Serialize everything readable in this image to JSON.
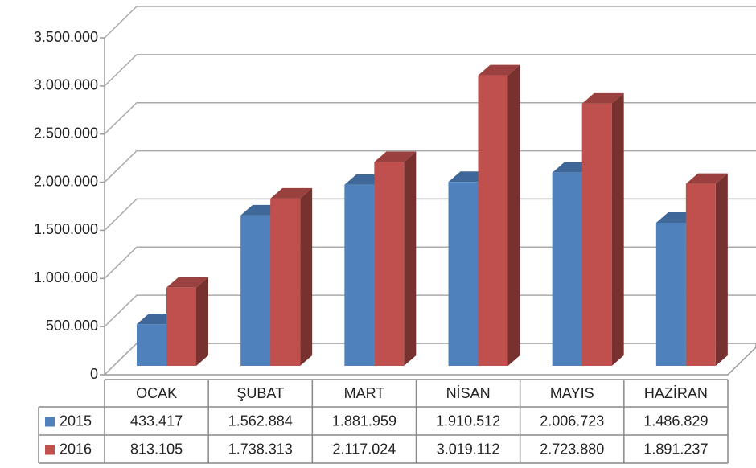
{
  "chart_data": {
    "type": "bar3d",
    "categories": [
      "OCAK",
      "ŞUBAT",
      "MART",
      "NİSAN",
      "MAYIS",
      "HAZİRAN"
    ],
    "series": [
      {
        "name": "2015",
        "color": "#4f81bd",
        "values": [
          433417,
          1562884,
          1881959,
          1910512,
          2006723,
          1486829
        ],
        "value_labels": [
          "433.417",
          "1.562.884",
          "1.881.959",
          "1.910.512",
          "2.006.723",
          "1.486.829"
        ]
      },
      {
        "name": "2016",
        "color": "#c0504d",
        "values": [
          813105,
          1738313,
          2117024,
          3019112,
          2723880,
          1891237
        ],
        "value_labels": [
          "813.105",
          "1.738.313",
          "2.117.024",
          "3.019.112",
          "2.723.880",
          "1.891.237"
        ]
      }
    ],
    "ylim": [
      0,
      3500000
    ],
    "yticks": [
      0,
      {
        "value": 500000,
        "label": "500.000"
      },
      {
        "value": 1000000,
        "label": "1.000.000"
      },
      {
        "value": 1500000,
        "label": "1.500.000"
      },
      {
        "value": 2000000,
        "label": "2.000.000"
      },
      {
        "value": 2500000,
        "label": "2.500.000"
      },
      {
        "value": 3000000,
        "label": "3.000.000"
      },
      {
        "value": 3500000,
        "label": "3.500.000"
      }
    ],
    "grid": true,
    "data_table": true
  }
}
